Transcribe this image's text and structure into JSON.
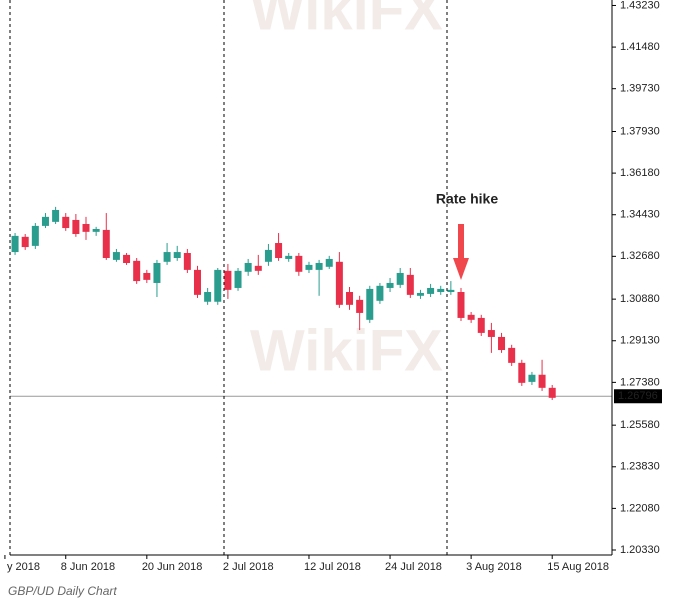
{
  "chart_data": {
    "type": "candlestick",
    "caption": "GBP/UD Daily Chart",
    "watermark": "WikiFX",
    "annotation": "Rate hike",
    "up_color": "#2a9d8f",
    "down_color": "#e8304a",
    "annotation_color": "#f0474d",
    "x": [
      -5,
      -4,
      -3,
      -2,
      -1,
      0,
      1,
      2,
      3,
      4,
      5,
      6,
      7,
      8,
      9,
      10,
      11,
      12,
      13,
      14,
      15,
      16,
      17,
      18,
      19,
      20,
      21,
      22,
      23,
      24,
      25,
      26,
      27,
      28,
      29,
      30,
      31,
      32,
      33,
      34,
      35,
      36,
      37,
      38,
      39,
      40,
      41,
      42,
      43,
      44,
      45,
      46,
      47,
      48
    ],
    "open": [
      1.3286,
      1.335,
      1.3312,
      1.3396,
      1.3413,
      1.3434,
      1.3421,
      1.3404,
      1.3371,
      1.3379,
      1.3253,
      1.3274,
      1.3249,
      1.3198,
      1.3156,
      1.3245,
      1.3261,
      1.3282,
      1.3211,
      1.3077,
      1.3077,
      1.3207,
      1.3135,
      1.3203,
      1.3228,
      1.3245,
      1.3324,
      1.3257,
      1.327,
      1.3211,
      1.3211,
      1.3224,
      1.3245,
      1.3118,
      1.3085,
      1.3001,
      1.3081,
      1.3135,
      1.3148,
      1.319,
      1.3102,
      1.311,
      1.3118,
      1.3118,
      1.3118,
      1.3022,
      1.3009,
      1.2958,
      1.2929,
      1.2883,
      1.282,
      1.274,
      1.277,
      1.2715
    ],
    "high": [
      1.3366,
      1.3362,
      1.3408,
      1.345,
      1.3476,
      1.345,
      1.3446,
      1.3434,
      1.3392,
      1.345,
      1.3299,
      1.3282,
      1.3261,
      1.3211,
      1.3253,
      1.3324,
      1.3312,
      1.3299,
      1.3228,
      1.3135,
      1.3219,
      1.3236,
      1.3219,
      1.3257,
      1.3274,
      1.332,
      1.3366,
      1.3282,
      1.3282,
      1.3245,
      1.3253,
      1.327,
      1.3286,
      1.3139,
      1.3102,
      1.3144,
      1.3156,
      1.3177,
      1.3219,
      1.3219,
      1.3127,
      1.3152,
      1.3144,
      1.3164,
      1.3135,
      1.3034,
      1.3022,
      1.2988,
      1.2946,
      1.2896,
      1.2833,
      1.2782,
      1.2833,
      1.2727
    ],
    "low": [
      1.3274,
      1.3295,
      1.3299,
      1.3387,
      1.3404,
      1.3375,
      1.335,
      1.3337,
      1.3354,
      1.3253,
      1.3245,
      1.3232,
      1.3152,
      1.3156,
      1.3097,
      1.3232,
      1.3249,
      1.3198,
      1.3093,
      1.3064,
      1.3064,
      1.3089,
      1.3123,
      1.3186,
      1.319,
      1.3228,
      1.3249,
      1.3245,
      1.3186,
      1.3198,
      1.3102,
      1.3215,
      1.3051,
      1.3043,
      1.2958,
      1.2988,
      1.3068,
      1.3118,
      1.3135,
      1.3093,
      1.3089,
      1.3097,
      1.3106,
      1.3106,
      1.2996,
      1.2988,
      1.2933,
      1.2862,
      1.2862,
      1.2807,
      1.2723,
      1.2727,
      1.2702,
      1.2664
    ],
    "close": [
      1.3354,
      1.3307,
      1.3396,
      1.3434,
      1.3463,
      1.3387,
      1.3362,
      1.3371,
      1.3383,
      1.3261,
      1.3286,
      1.324,
      1.3164,
      1.3169,
      1.324,
      1.3286,
      1.3286,
      1.3211,
      1.3106,
      1.3118,
      1.3211,
      1.3127,
      1.3207,
      1.324,
      1.3207,
      1.3295,
      1.3261,
      1.327,
      1.3203,
      1.3232,
      1.324,
      1.3257,
      1.3064,
      1.3064,
      1.303,
      1.3131,
      1.3144,
      1.3156,
      1.3198,
      1.3106,
      1.3114,
      1.3135,
      1.3131,
      1.3127,
      1.3009,
      1.3001,
      1.2946,
      1.2929,
      1.2874,
      1.282,
      1.2736,
      1.277,
      1.2715,
      1.2673
    ],
    "xlim": [
      -5.5,
      53.9
    ],
    "xticks": [
      {
        "value": -6,
        "label": "y 2018"
      },
      {
        "value": 0,
        "label": "8 Jun 2018"
      },
      {
        "value": 8,
        "label": "20 Jun 2018"
      },
      {
        "value": 16,
        "label": "2 Jul 2018"
      },
      {
        "value": 24,
        "label": "12 Jul 2018"
      },
      {
        "value": 32,
        "label": "24 Jul 2018"
      },
      {
        "value": 40,
        "label": "3 Aug 2018"
      },
      {
        "value": 48,
        "label": "15 Aug 2018"
      }
    ],
    "ylim": [
      1.2012,
      1.4346
    ],
    "yticks": [
      {
        "value": 1.2033,
        "label": "1.20330"
      },
      {
        "value": 1.2208,
        "label": "1.22080"
      },
      {
        "value": 1.2383,
        "label": "1.23830"
      },
      {
        "value": 1.2558,
        "label": "1.25580"
      },
      {
        "value": 1.2738,
        "label": "1.27380"
      },
      {
        "value": 1.2913,
        "label": "1.29130"
      },
      {
        "value": 1.3088,
        "label": "1.30880"
      },
      {
        "value": 1.3268,
        "label": "1.32680"
      },
      {
        "value": 1.3443,
        "label": "1.34430"
      },
      {
        "value": 1.3618,
        "label": "1.36180"
      },
      {
        "value": 1.3793,
        "label": "1.37930"
      },
      {
        "value": 1.3973,
        "label": "1.39730"
      },
      {
        "value": 1.4148,
        "label": "1.41480"
      },
      {
        "value": 1.4323,
        "label": "1.43230"
      }
    ],
    "price_line": {
      "value": 1.26796,
      "label": "1.26796"
    }
  }
}
